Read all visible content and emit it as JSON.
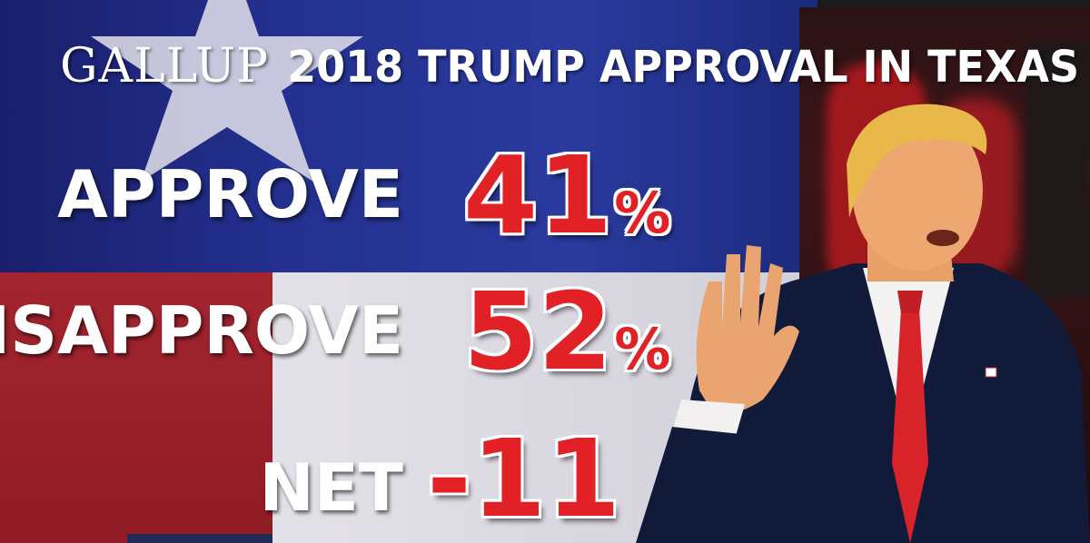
{
  "header": {
    "logo_text": "GALLUP",
    "title": "2018 TRUMP APPROVAL IN TEXAS"
  },
  "results": {
    "approve_label": "APPROVE",
    "approve_value": "41",
    "approve_unit": "%",
    "disapprove_label": "DISAPPROVE",
    "disapprove_value": "52",
    "disapprove_unit": "%",
    "net_label": "NET",
    "net_value": "-11"
  },
  "colors": {
    "value_red": "#e22127",
    "flag_blue": "#23308f",
    "flag_red": "#a3242e",
    "flag_white": "#d8d3d8"
  }
}
